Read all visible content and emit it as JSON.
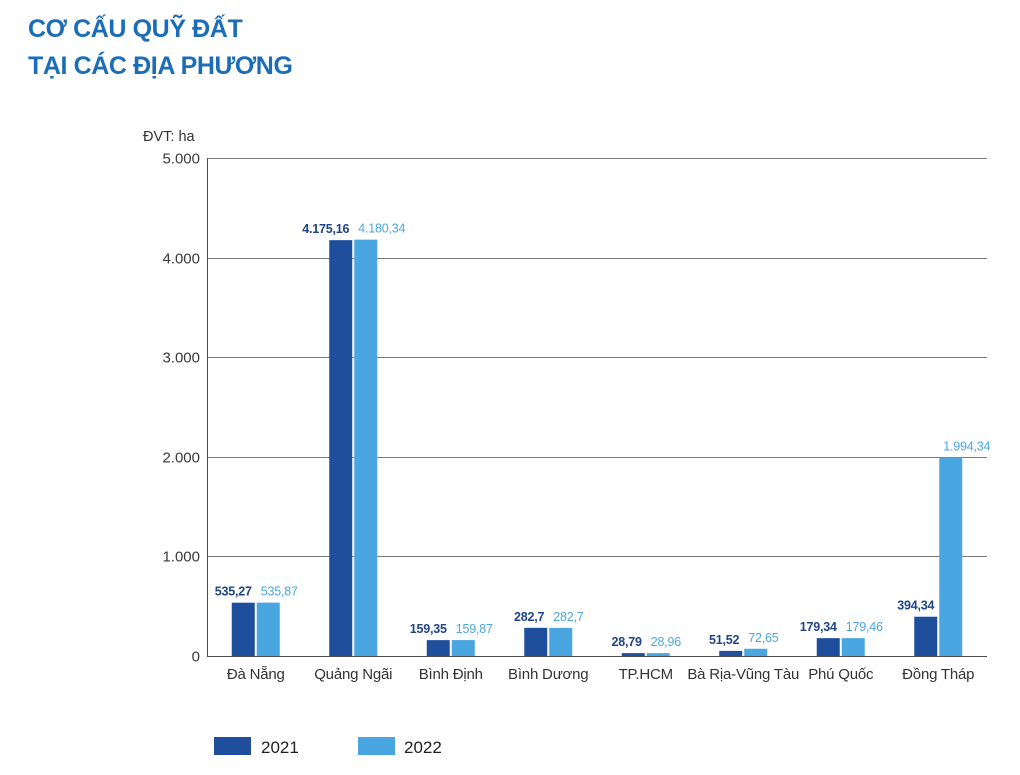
{
  "title": {
    "line1": "CƠ CẤU QUỸ ĐẤT",
    "line2": "TẠI CÁC ĐỊA PHƯƠNG"
  },
  "colors": {
    "title": "#1c6db7",
    "grid": "#7a7a7a",
    "axis": "#4d4d4d"
  },
  "chart_data": {
    "type": "bar",
    "ylabel": "ĐVT: ha",
    "categories": [
      "Đà Nẵng",
      "Quảng Ngãi",
      "Bình Định",
      "Bình Dương",
      "TP.HCM",
      "Bà Rịa-Vũng Tàu",
      "Phú Quốc",
      "Đồng Tháp"
    ],
    "series": [
      {
        "name": "2021",
        "color": "#1f4e9c",
        "label_color": "#1f4488",
        "values": [
          535.27,
          4175.16,
          159.35,
          282.7,
          28.79,
          51.52,
          179.34,
          394.34
        ],
        "labels": [
          "535,27",
          "4.175,16",
          "159,35",
          "282,7",
          "28,79",
          "51,52",
          "179,34",
          "394,34"
        ]
      },
      {
        "name": "2022",
        "color": "#4aa6e0",
        "label_color": "#4aa6e0",
        "values": [
          535.87,
          4180.34,
          159.87,
          282.7,
          28.96,
          72.65,
          179.46,
          1994.34
        ],
        "labels": [
          "535,87",
          "4.180,34",
          "159,87",
          "282,7",
          "28,96",
          "72,65",
          "179,46",
          "1.994,34"
        ]
      }
    ],
    "ylim": [
      0,
      5000
    ],
    "yticks": [
      0,
      1000,
      2000,
      3000,
      4000,
      5000
    ],
    "ytick_labels": [
      "0",
      "1.000",
      "2.000",
      "3.000",
      "4.000",
      "5.000"
    ],
    "grid": true,
    "legend": "bottom-left"
  }
}
